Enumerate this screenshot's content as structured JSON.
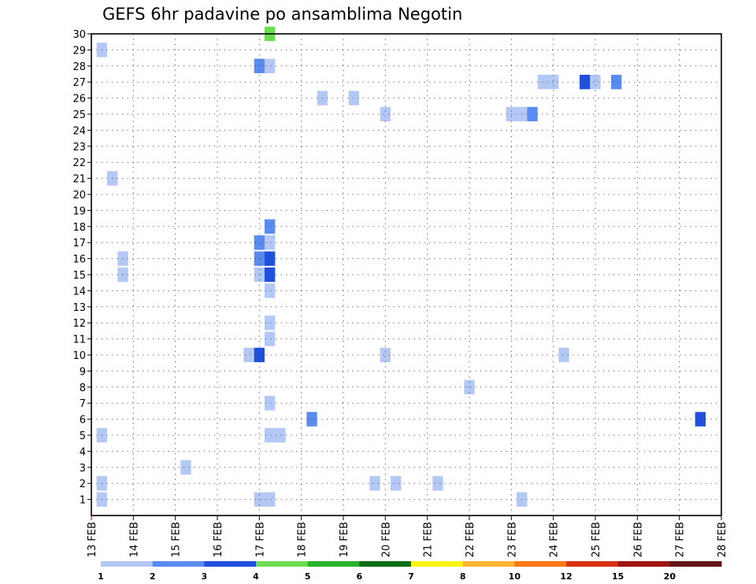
{
  "chart_data": {
    "type": "heatmap",
    "title": "GEFS 6hr padavine po ansamblima Negotin",
    "xlabel": "",
    "ylabel": "",
    "x_ticks": [
      "13 FEB",
      "14 FEB",
      "15 FEB",
      "16 FEB",
      "17 FEB",
      "18 FEB",
      "19 FEB",
      "20 FEB",
      "21 FEB",
      "22 FEB",
      "23 FEB",
      "24 FEB",
      "25 FEB",
      "26 FEB",
      "27 FEB",
      "28 FEB"
    ],
    "x_range_days": [
      13,
      28
    ],
    "y_range": [
      0,
      30
    ],
    "y_ticks": [
      1,
      2,
      3,
      4,
      5,
      6,
      7,
      8,
      9,
      10,
      11,
      12,
      13,
      14,
      15,
      16,
      17,
      18,
      19,
      20,
      21,
      22,
      23,
      24,
      25,
      26,
      27,
      28,
      29,
      30
    ],
    "grid": true,
    "colorbar": {
      "levels": [
        "1",
        "2",
        "3",
        "4",
        "5",
        "6",
        "7",
        "8",
        "10",
        "12",
        "15",
        "20"
      ],
      "colors": [
        "#b4c8f5",
        "#5a8cf0",
        "#1e50dc",
        "#6edc50",
        "#28b428",
        "#0a6e14",
        "#fff514",
        "#ffb432",
        "#ff7814",
        "#dc3214",
        "#a01414",
        "#641414"
      ]
    },
    "cells": [
      {
        "member": 1,
        "day": 13.25,
        "cat": 0
      },
      {
        "member": 1,
        "day": 17.0,
        "cat": 0
      },
      {
        "member": 1,
        "day": 17.25,
        "cat": 0
      },
      {
        "member": 1,
        "day": 23.25,
        "cat": 0
      },
      {
        "member": 2,
        "day": 13.25,
        "cat": 0
      },
      {
        "member": 2,
        "day": 19.75,
        "cat": 0
      },
      {
        "member": 2,
        "day": 20.25,
        "cat": 0
      },
      {
        "member": 2,
        "day": 21.25,
        "cat": 0
      },
      {
        "member": 3,
        "day": 15.25,
        "cat": 0
      },
      {
        "member": 5,
        "day": 13.25,
        "cat": 0
      },
      {
        "member": 5,
        "day": 17.25,
        "cat": 0
      },
      {
        "member": 5,
        "day": 17.5,
        "cat": 0
      },
      {
        "member": 6,
        "day": 18.25,
        "cat": 1
      },
      {
        "member": 6,
        "day": 27.5,
        "cat": 2
      },
      {
        "member": 7,
        "day": 17.25,
        "cat": 0
      },
      {
        "member": 8,
        "day": 22.0,
        "cat": 0
      },
      {
        "member": 10,
        "day": 16.75,
        "cat": 0
      },
      {
        "member": 10,
        "day": 17.0,
        "cat": 2
      },
      {
        "member": 10,
        "day": 20.0,
        "cat": 0
      },
      {
        "member": 10,
        "day": 24.25,
        "cat": 0
      },
      {
        "member": 11,
        "day": 17.25,
        "cat": 0
      },
      {
        "member": 12,
        "day": 17.25,
        "cat": 0
      },
      {
        "member": 14,
        "day": 17.25,
        "cat": 0
      },
      {
        "member": 15,
        "day": 13.75,
        "cat": 0
      },
      {
        "member": 15,
        "day": 17.0,
        "cat": 0
      },
      {
        "member": 15,
        "day": 17.25,
        "cat": 2
      },
      {
        "member": 16,
        "day": 13.75,
        "cat": 0
      },
      {
        "member": 16,
        "day": 17.0,
        "cat": 1
      },
      {
        "member": 16,
        "day": 17.25,
        "cat": 2
      },
      {
        "member": 17,
        "day": 17.0,
        "cat": 1
      },
      {
        "member": 17,
        "day": 17.25,
        "cat": 0
      },
      {
        "member": 18,
        "day": 17.25,
        "cat": 1
      },
      {
        "member": 21,
        "day": 13.5,
        "cat": 0
      },
      {
        "member": 25,
        "day": 20.0,
        "cat": 0
      },
      {
        "member": 25,
        "day": 23.0,
        "cat": 0
      },
      {
        "member": 25,
        "day": 23.25,
        "cat": 0
      },
      {
        "member": 25,
        "day": 23.5,
        "cat": 1
      },
      {
        "member": 26,
        "day": 18.5,
        "cat": 0
      },
      {
        "member": 26,
        "day": 19.25,
        "cat": 0
      },
      {
        "member": 27,
        "day": 23.75,
        "cat": 0
      },
      {
        "member": 27,
        "day": 24.0,
        "cat": 0
      },
      {
        "member": 27,
        "day": 24.75,
        "cat": 2
      },
      {
        "member": 27,
        "day": 25.0,
        "cat": 0
      },
      {
        "member": 27,
        "day": 25.5,
        "cat": 1
      },
      {
        "member": 28,
        "day": 17.0,
        "cat": 1
      },
      {
        "member": 28,
        "day": 17.25,
        "cat": 0
      },
      {
        "member": 29,
        "day": 13.25,
        "cat": 0
      },
      {
        "member": 30,
        "day": 17.25,
        "cat": 3
      }
    ]
  }
}
